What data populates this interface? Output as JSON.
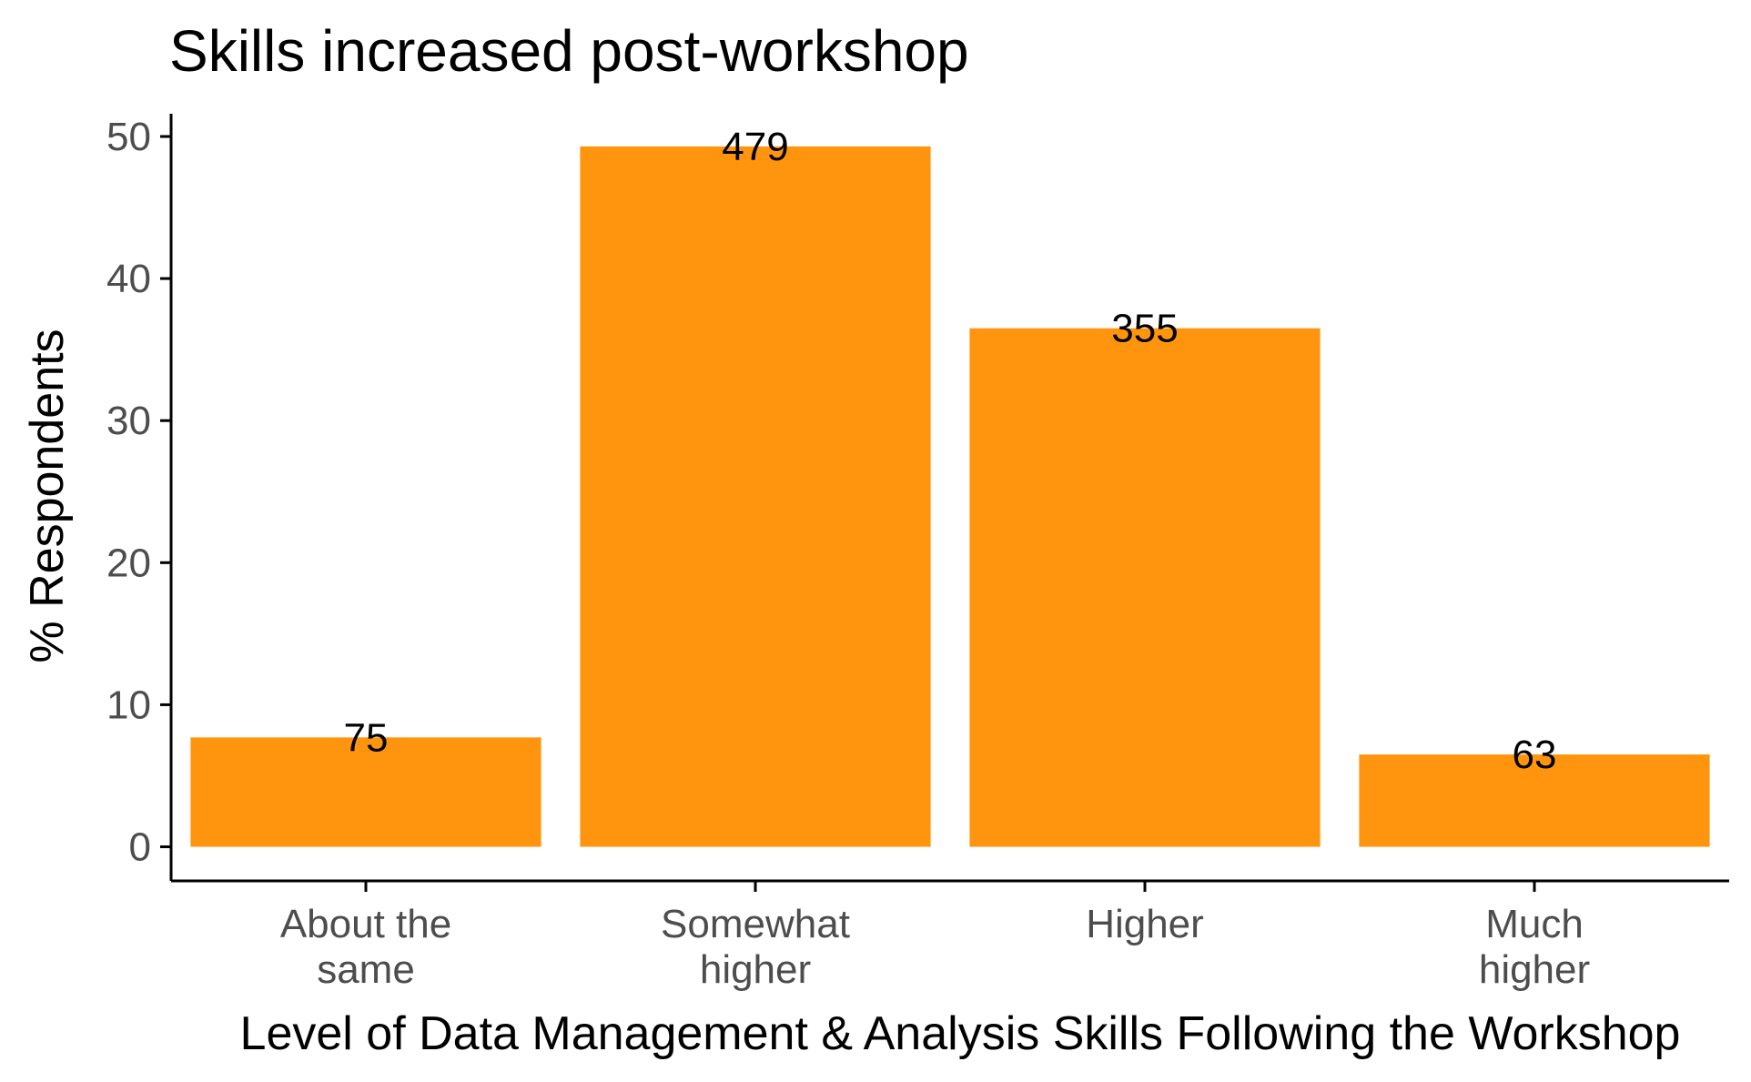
{
  "chart_data": {
    "type": "bar",
    "title": "Skills increased post-workshop",
    "xlabel": "Level of Data Management & Analysis Skills Following the Workshop",
    "ylabel": "% Respondents",
    "categories": [
      [
        "About the",
        "same"
      ],
      [
        "Somewhat",
        "higher"
      ],
      [
        "Higher"
      ],
      [
        "Much",
        "higher"
      ]
    ],
    "values": [
      7.7,
      49.3,
      36.5,
      6.5
    ],
    "labels": [
      "75",
      "479",
      "355",
      "63"
    ],
    "yticks": [
      "0",
      "10",
      "20",
      "30",
      "40",
      "50"
    ],
    "ylim": [
      -2.4,
      51.6
    ],
    "bar_color": "#FF950E",
    "grid": false,
    "legend": "none"
  }
}
